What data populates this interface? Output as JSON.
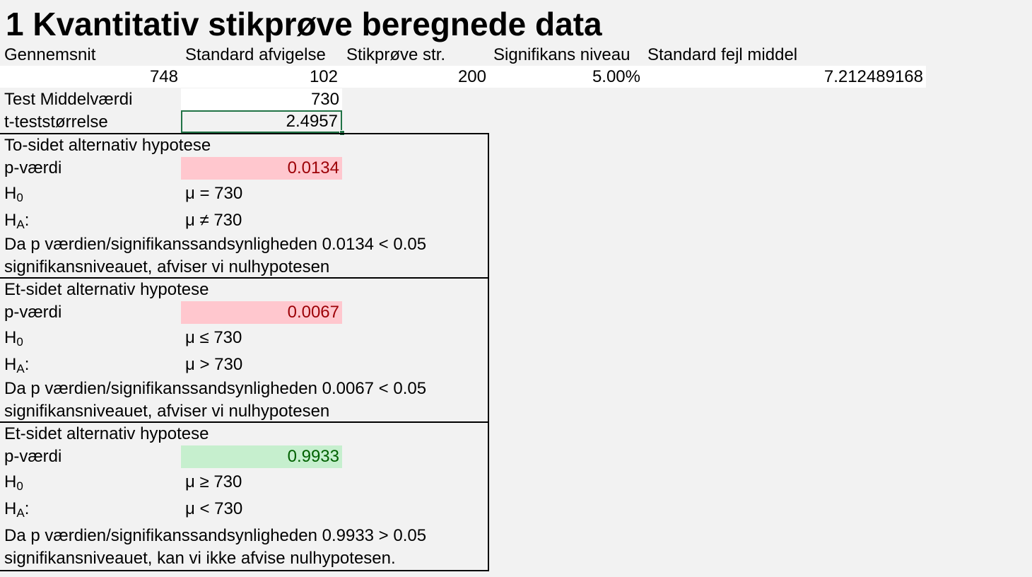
{
  "title": "1 Kvantitativ stikprøve beregnede data",
  "headers": {
    "mean": "Gennemsnit",
    "std": "Standard afvigelse",
    "n": "Stikprøve str.",
    "alpha": "Signifikans niveau",
    "se": "Standard fejl middel"
  },
  "values": {
    "mean": "748",
    "std": "102",
    "n": "200",
    "alpha": "5.00%",
    "se": "7.212489168"
  },
  "test_mean": {
    "label": "Test Middelværdi",
    "value": "730"
  },
  "t_stat": {
    "label": "t-teststørrelse",
    "value": "2.4957"
  },
  "sections": [
    {
      "heading": "To-sidet alternativ hypotese",
      "p_label": "p-værdi",
      "p_value": "0.0134",
      "h0_label": "H",
      "h0_sub": "0",
      "h0": "μ = 730",
      "ha_label": "H",
      "ha_sub": "A",
      "ha_colon": ":",
      "ha": "μ ≠ 730",
      "line1": "Da p værdien/signifikanssandsynligheden 0.0134 < 0.05",
      "line2": "signifikansniveauet, afviser vi nulhypotesen"
    },
    {
      "heading": "Et-sidet alternativ hypotese",
      "p_label": "p-værdi",
      "p_value": "0.0067",
      "h0_label": "H",
      "h0_sub": "0",
      "h0": "μ ≤ 730",
      "ha_label": "H",
      "ha_sub": "A",
      "ha_colon": ":",
      "ha": "μ > 730",
      "line1": "Da p værdien/signifikanssandsynligheden 0.0067 < 0.05",
      "line2": "signifikansniveauet, afviser vi nulhypotesen"
    },
    {
      "heading": "Et-sidet alternativ hypotese",
      "p_label": "p-værdi",
      "p_value": "0.9933",
      "h0_label": "H",
      "h0_sub": "0",
      "h0": "μ ≥ 730",
      "ha_label": "H",
      "ha_sub": "A",
      "ha_colon": ":",
      "ha": "μ < 730",
      "line1": "Da p værdien/signifikanssandsynligheden 0.9933 > 0.05",
      "line2": "signifikansniveauet, kan vi ikke afvise nulhypotesen."
    }
  ],
  "colors": {
    "reject_fill": "#ffc7ce",
    "reject_text": "#9c0006",
    "accept_fill": "#c6efce",
    "accept_text": "#006100",
    "selection": "#217346"
  }
}
